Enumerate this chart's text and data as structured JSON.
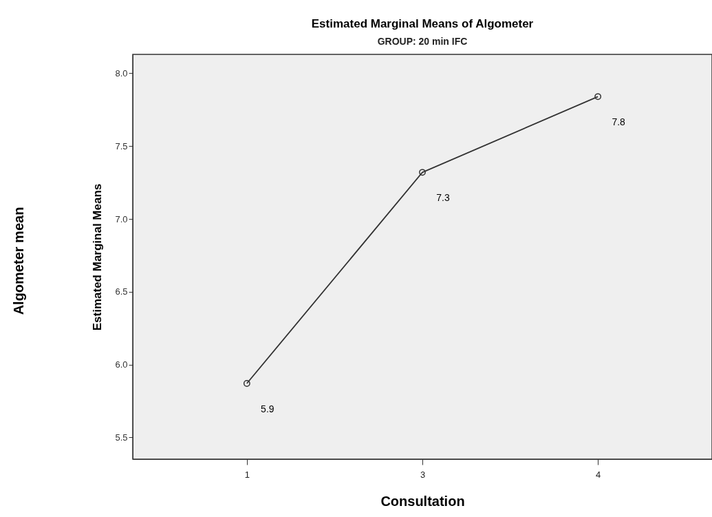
{
  "chart_data": {
    "type": "line",
    "title": "Estimated Marginal Means of Algometer",
    "subtitle": "GROUP: 20 min IFC",
    "xlabel": "Consultation",
    "ylabel": "Estimated Marginal Means",
    "annotations": [
      "Algometer mean"
    ],
    "categories": [
      "1",
      "3",
      "4"
    ],
    "series": [
      {
        "color": "#333333",
        "values": [
          5.87,
          7.32,
          7.84
        ],
        "value_labels": [
          "5.9",
          "7.3",
          "7.8"
        ]
      }
    ],
    "ylim": [
      5.35,
      8.13
    ],
    "yticks": [
      {
        "value": 5.5,
        "label": "5.5"
      },
      {
        "value": 6.0,
        "label": "6.0"
      },
      {
        "value": 6.5,
        "label": "6.5"
      },
      {
        "value": 7.0,
        "label": "7.0"
      },
      {
        "value": 7.5,
        "label": "7.5"
      },
      {
        "value": 8.0,
        "label": "8.0"
      }
    ],
    "grid": false,
    "marker": "circle",
    "line_style": "solid"
  }
}
